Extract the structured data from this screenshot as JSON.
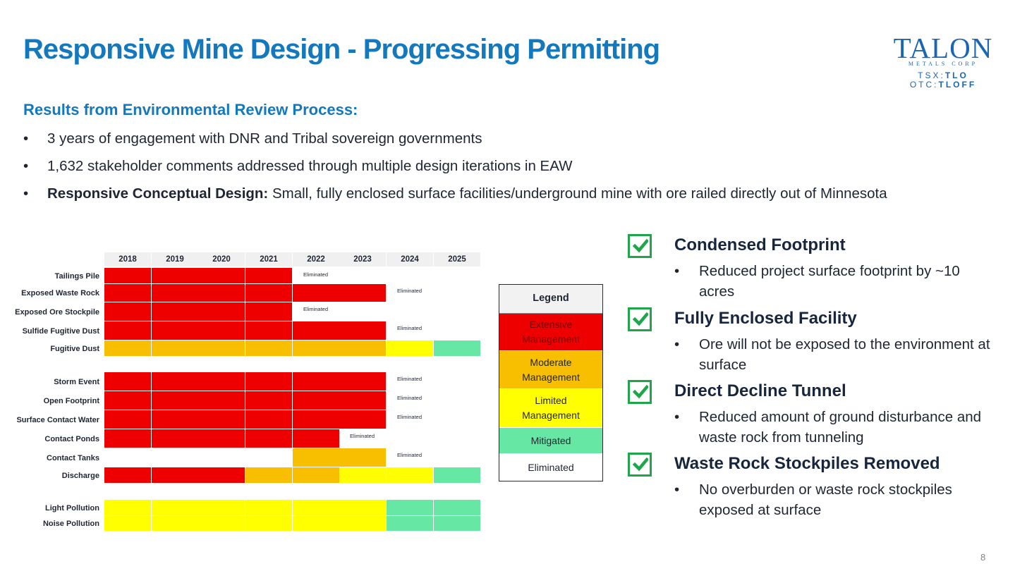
{
  "slide": {
    "title": "Responsive Mine Design - Progressing Permitting",
    "page_number": "8"
  },
  "logo": {
    "name": "TALON",
    "sub": "METALS CORP",
    "ticker_tsx_prefix": "TSX:",
    "ticker_tsx": "TLO",
    "ticker_otc_prefix": "OTC:",
    "ticker_otc": "TLOFF"
  },
  "intro": {
    "heading": "Results from Environmental Review Process:",
    "bullets": [
      {
        "bold": "",
        "text": "3 years of engagement with DNR and Tribal sovereign governments"
      },
      {
        "bold": "",
        "text": "1,632 stakeholder comments addressed through multiple design iterations in EAW"
      },
      {
        "bold": "Responsive Conceptual Design:",
        "text": " Small, fully enclosed surface facilities/underground mine with ore railed directly out of Minnesota"
      }
    ]
  },
  "chart_data": {
    "type": "table",
    "columns": [
      "2018",
      "2019",
      "2020",
      "2021",
      "2022",
      "2023",
      "2024",
      "2025"
    ],
    "rows": [
      {
        "label": "Tailings Pile",
        "levels": [
          "Extensive",
          "Extensive",
          "Extensive",
          "Extensive",
          "Eliminated",
          "",
          "",
          ""
        ]
      },
      {
        "label": "Exposed Waste Rock",
        "levels": [
          "Extensive",
          "Extensive",
          "Extensive",
          "Extensive",
          "Extensive",
          "Extensive",
          "Eliminated",
          ""
        ]
      },
      {
        "label": "Exposed Ore Stockpile",
        "levels": [
          "Extensive",
          "Extensive",
          "Extensive",
          "Extensive",
          "Eliminated",
          "",
          "",
          ""
        ]
      },
      {
        "label": "Sulfide Fugitive Dust",
        "levels": [
          "Extensive",
          "Extensive",
          "Extensive",
          "Extensive",
          "Extensive",
          "Extensive",
          "Eliminated",
          ""
        ]
      },
      {
        "label": "Fugitive Dust",
        "levels": [
          "Moderate",
          "Moderate",
          "Moderate",
          "Moderate",
          "Moderate",
          "Moderate",
          "Limited",
          "Mitigated"
        ]
      },
      {
        "label": "Storm Event",
        "levels": [
          "Extensive",
          "Extensive",
          "Extensive",
          "Extensive",
          "Extensive",
          "Extensive",
          "Eliminated",
          ""
        ]
      },
      {
        "label": "Open Footprint",
        "levels": [
          "Extensive",
          "Extensive",
          "Extensive",
          "Extensive",
          "Extensive",
          "Extensive",
          "Eliminated",
          ""
        ]
      },
      {
        "label": "Surface Contact Water",
        "levels": [
          "Extensive",
          "Extensive",
          "Extensive",
          "Extensive",
          "Extensive",
          "Extensive",
          "Eliminated",
          ""
        ]
      },
      {
        "label": "Contact Ponds",
        "levels": [
          "Extensive",
          "Extensive",
          "Extensive",
          "Extensive",
          "Extensive",
          "Eliminated",
          "",
          ""
        ]
      },
      {
        "label": "Contact Tanks",
        "levels": [
          "",
          "",
          "",
          "",
          "Moderate",
          "Moderate",
          "Eliminated",
          ""
        ]
      },
      {
        "label": "Discharge",
        "levels": [
          "Extensive",
          "Extensive",
          "Extensive",
          "Moderate",
          "Moderate",
          "Limited",
          "Limited",
          "Mitigated"
        ]
      },
      {
        "label": "Light Pollution",
        "levels": [
          "Limited",
          "Limited",
          "Limited",
          "Limited",
          "Limited",
          "Limited",
          "Mitigated",
          "Mitigated"
        ]
      },
      {
        "label": "Noise Pollution",
        "levels": [
          "Limited",
          "Limited",
          "Limited",
          "Limited",
          "Limited",
          "Limited",
          "Mitigated",
          "Mitigated"
        ]
      }
    ],
    "eliminated_text": "Eliminated",
    "level_colors": {
      "Extensive": "#ee0000",
      "Moderate": "#f7bf00",
      "Limited": "#ffff00",
      "Mitigated": "#66e8a4",
      "Eliminated": "#ffffff"
    }
  },
  "legend": {
    "title": "Legend",
    "items": [
      {
        "label": "Extensive Management",
        "color": "#ee0000",
        "text_color": "#7a0000"
      },
      {
        "label": "Moderate Management",
        "color": "#f7bf00",
        "text_color": "#1f2533"
      },
      {
        "label": "Limited Management",
        "color": "#ffff00",
        "text_color": "#1f2533"
      },
      {
        "label": "Mitigated",
        "color": "#66e8a4",
        "text_color": "#1f2533"
      },
      {
        "label": "Eliminated",
        "color": "#ffffff",
        "text_color": "#1f2533"
      }
    ]
  },
  "checks": [
    {
      "title": "Condensed Footprint",
      "desc": "Reduced project surface footprint by ~10 acres"
    },
    {
      "title": "Fully Enclosed Facility",
      "desc": "Ore will not be exposed to the environment at surface"
    },
    {
      "title": "Direct Decline Tunnel",
      "desc": "Reduced amount of ground disturbance and waste rock from tunneling"
    },
    {
      "title": "Waste Rock Stockpiles Removed",
      "desc": "No overburden or waste rock stockpiles exposed at surface"
    }
  ]
}
